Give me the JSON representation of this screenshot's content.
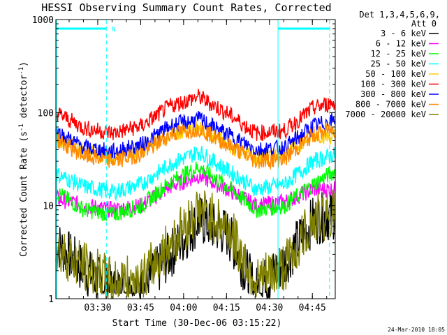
{
  "chart_data": {
    "type": "line",
    "title": "HESSI Observing Summary Count Rates, Corrected",
    "xlabel": "Start Time (30-Dec-06 03:15:22)",
    "ylabel_main": "Corrected Count Rate (s",
    "ylabel_sup1": "-1",
    "ylabel_mid": " detector",
    "ylabel_sup2": "-1",
    "ylabel_end": ")",
    "y_scale": "log",
    "ylim": [
      1,
      1000
    ],
    "x_start": "03:15:22",
    "x_end": "04:53:00",
    "x_ticks": [
      "03:30",
      "03:45",
      "04:00",
      "04:15",
      "04:30",
      "04:45"
    ],
    "y_ticks": [
      "1",
      "10",
      "100",
      "1000"
    ],
    "grid": false,
    "legend_position": "right",
    "legend_header": [
      "Det 1,3,4,5,6,9,",
      "Att 0"
    ],
    "footer_date": "24-Mar-2010 18:05",
    "attenuator_flag": "N",
    "markers": {
      "solid_vertical": [
        "03:15:22",
        "04:33:00"
      ],
      "dashed_vertical": [
        "03:33:00",
        "04:51:00"
      ],
      "top_bar_segments": [
        [
          "03:15:22",
          "03:33:00"
        ],
        [
          "04:33:00",
          "04:51:00"
        ]
      ],
      "color": "#00ffff"
    },
    "series": [
      {
        "name": "3 - 6 keV",
        "color": "#000000",
        "values": [
          [
            0,
            4
          ],
          [
            10,
            2
          ],
          [
            20,
            1.2
          ],
          [
            30,
            1.2
          ],
          [
            40,
            3
          ],
          [
            50,
            7
          ],
          [
            60,
            5
          ],
          [
            70,
            1.2
          ],
          [
            80,
            2.5
          ],
          [
            90,
            7
          ],
          [
            97,
            8
          ]
        ]
      },
      {
        "name": "6 - 12 keV",
        "color": "#ff00ff",
        "values": [
          [
            0,
            12
          ],
          [
            10,
            10
          ],
          [
            20,
            9
          ],
          [
            30,
            10
          ],
          [
            40,
            16
          ],
          [
            50,
            21
          ],
          [
            60,
            15
          ],
          [
            70,
            10
          ],
          [
            80,
            11
          ],
          [
            90,
            15
          ],
          [
            97,
            15
          ]
        ]
      },
      {
        "name": "12 - 25 keV",
        "color": "#00ff00",
        "values": [
          [
            0,
            14
          ],
          [
            10,
            9
          ],
          [
            20,
            8
          ],
          [
            30,
            10
          ],
          [
            40,
            18
          ],
          [
            50,
            26
          ],
          [
            60,
            16
          ],
          [
            70,
            9
          ],
          [
            80,
            10
          ],
          [
            90,
            17
          ],
          [
            97,
            23
          ]
        ]
      },
      {
        "name": "25 - 50 keV",
        "color": "#00ffff",
        "values": [
          [
            0,
            22
          ],
          [
            10,
            16
          ],
          [
            20,
            14
          ],
          [
            30,
            17
          ],
          [
            40,
            28
          ],
          [
            50,
            38
          ],
          [
            60,
            24
          ],
          [
            70,
            15
          ],
          [
            80,
            17
          ],
          [
            90,
            30
          ],
          [
            97,
            35
          ]
        ]
      },
      {
        "name": "50 - 100 keV",
        "color": "#ffcc00",
        "values": [
          [
            0,
            55
          ],
          [
            10,
            38
          ],
          [
            20,
            32
          ],
          [
            30,
            38
          ],
          [
            40,
            58
          ],
          [
            50,
            68
          ],
          [
            60,
            45
          ],
          [
            70,
            32
          ],
          [
            80,
            36
          ],
          [
            90,
            58
          ],
          [
            97,
            55
          ]
        ]
      },
      {
        "name": "100 - 300 keV",
        "color": "#ff0000",
        "values": [
          [
            0,
            100
          ],
          [
            10,
            68
          ],
          [
            20,
            60
          ],
          [
            30,
            72
          ],
          [
            40,
            118
          ],
          [
            50,
            148
          ],
          [
            60,
            98
          ],
          [
            70,
            60
          ],
          [
            80,
            64
          ],
          [
            90,
            112
          ],
          [
            97,
            128
          ]
        ]
      },
      {
        "name": "300 - 800 keV",
        "color": "#0000ff",
        "values": [
          [
            0,
            62
          ],
          [
            10,
            42
          ],
          [
            20,
            38
          ],
          [
            30,
            45
          ],
          [
            40,
            72
          ],
          [
            50,
            85
          ],
          [
            60,
            58
          ],
          [
            70,
            40
          ],
          [
            80,
            42
          ],
          [
            90,
            72
          ],
          [
            97,
            82
          ]
        ]
      },
      {
        "name": "800 - 7000 keV",
        "color": "#ff8800",
        "values": [
          [
            0,
            52
          ],
          [
            10,
            34
          ],
          [
            20,
            30
          ],
          [
            30,
            36
          ],
          [
            40,
            58
          ],
          [
            50,
            68
          ],
          [
            60,
            45
          ],
          [
            70,
            30
          ],
          [
            80,
            32
          ],
          [
            90,
            58
          ],
          [
            97,
            65
          ]
        ]
      },
      {
        "name": "7000 - 20000 keV",
        "color": "#808000",
        "values": [
          [
            0,
            3.5
          ],
          [
            10,
            2.2
          ],
          [
            20,
            1.5
          ],
          [
            30,
            1.6
          ],
          [
            40,
            4
          ],
          [
            50,
            9
          ],
          [
            60,
            6
          ],
          [
            70,
            1.5
          ],
          [
            80,
            2.2
          ],
          [
            90,
            7
          ],
          [
            97,
            8.5
          ]
        ]
      }
    ]
  }
}
